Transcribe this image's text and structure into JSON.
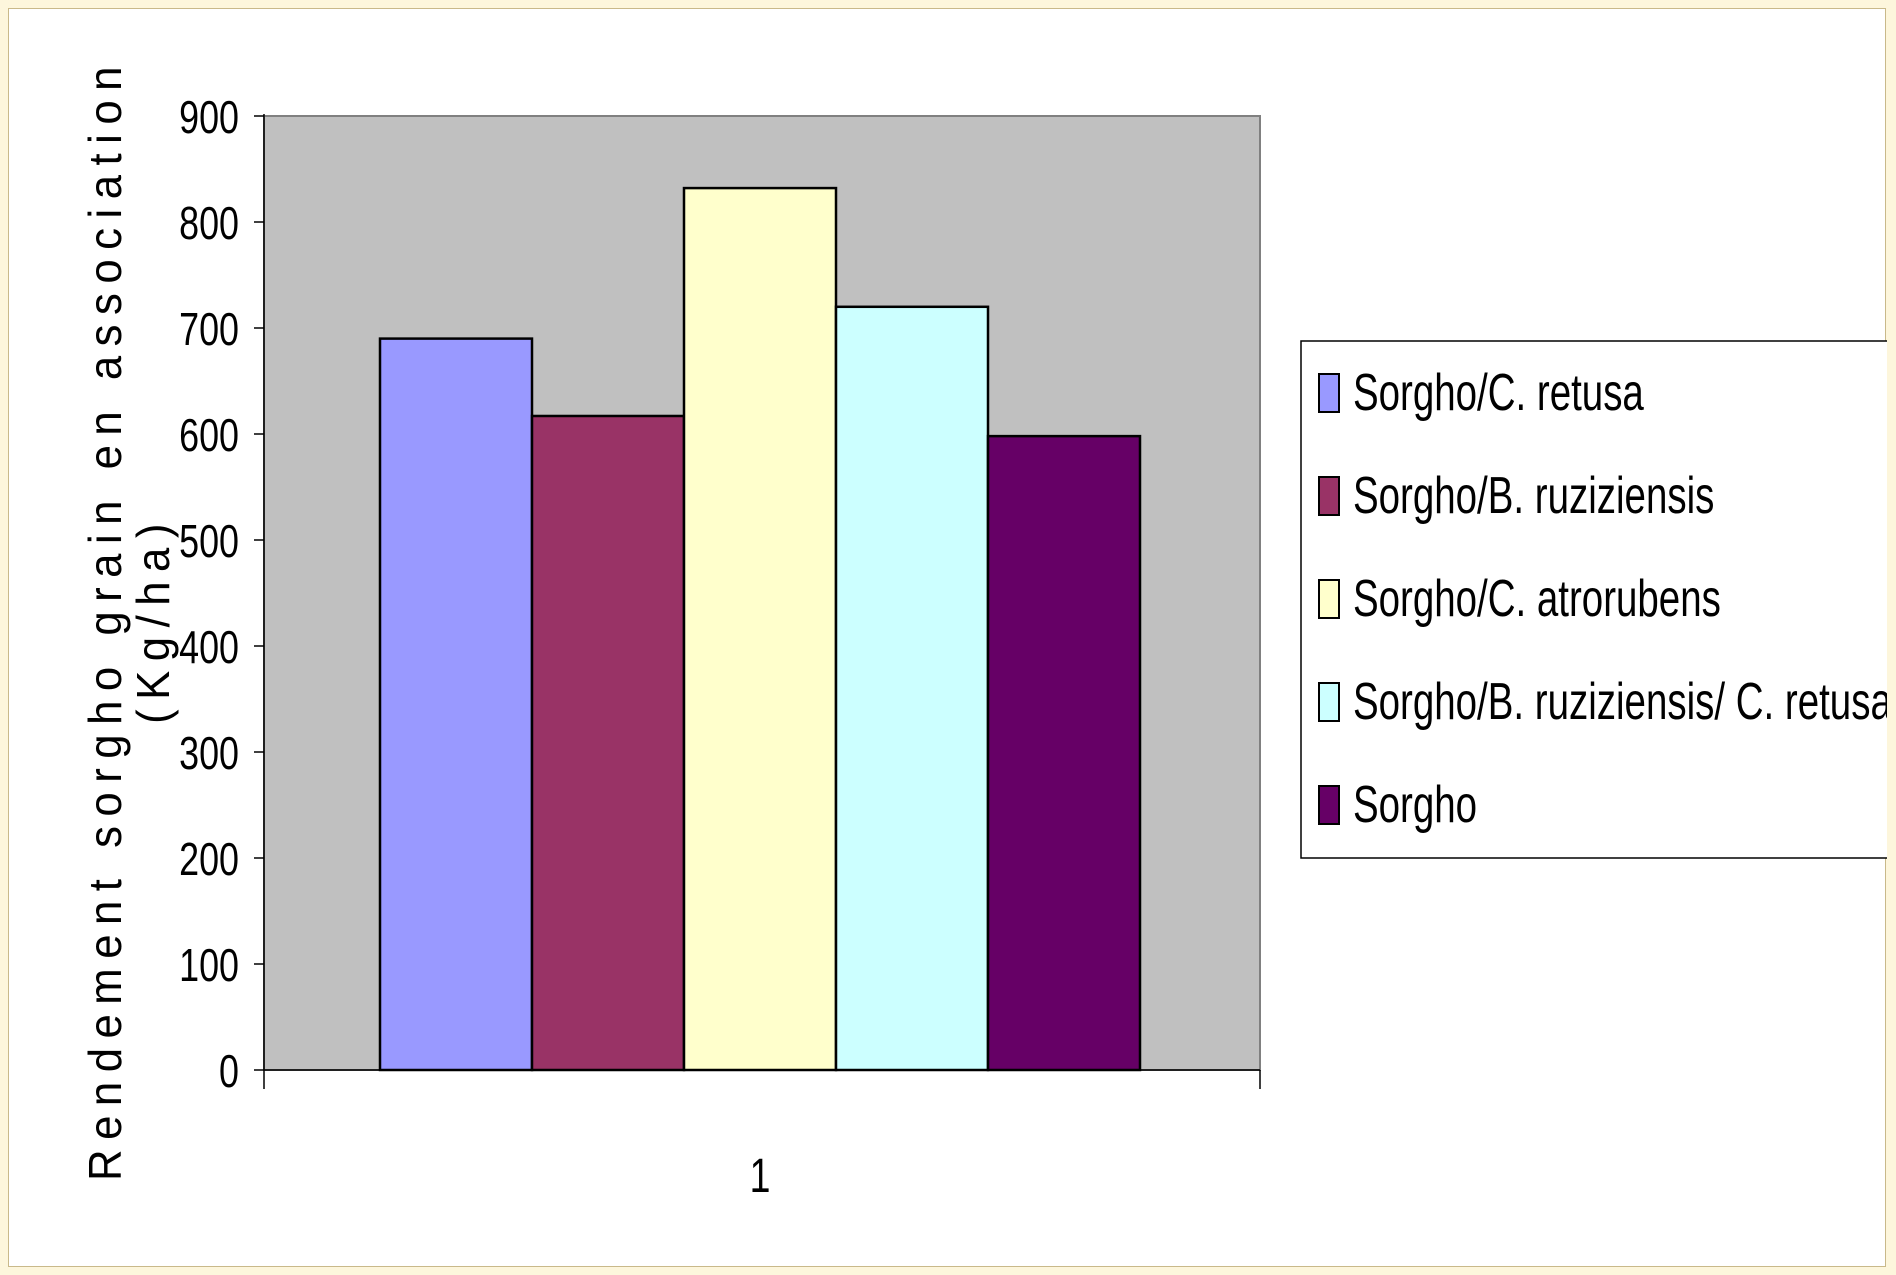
{
  "chart_data": {
    "type": "bar",
    "categories": [
      "1"
    ],
    "series": [
      {
        "name": "Sorgho/C. retusa",
        "values": [
          690
        ],
        "color": "#9999ff"
      },
      {
        "name": "Sorgho/B. ruziziensis",
        "values": [
          617
        ],
        "color": "#993366"
      },
      {
        "name": "Sorgho/C. atrorubens",
        "values": [
          832
        ],
        "color": "#ffffcc"
      },
      {
        "name": "Sorgho/B. ruziziensis/ C. retusa",
        "values": [
          720
        ],
        "color": "#ccffff"
      },
      {
        "name": "Sorgho",
        "values": [
          598
        ],
        "color": "#660066"
      }
    ],
    "title": "",
    "xlabel": "",
    "ylabel": "Rendement sorgho grain en association (Kg/ha)",
    "ylim": [
      0,
      900
    ],
    "yticks": [
      0,
      100,
      200,
      300,
      400,
      500,
      600,
      700,
      800,
      900
    ],
    "grid": false,
    "plot_background": "#c0c0c0",
    "legend": "right"
  }
}
